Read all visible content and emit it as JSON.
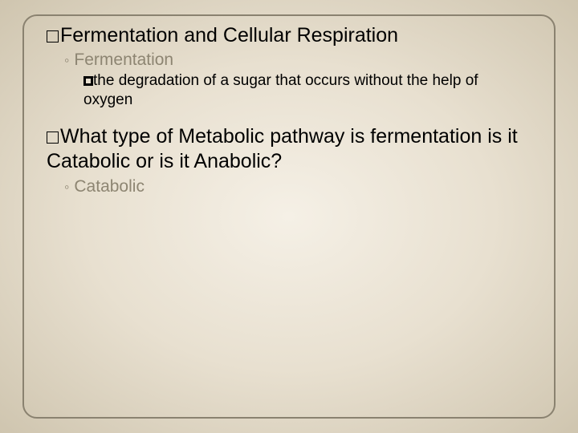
{
  "title_line": "Fermentation and Cellular Respiration",
  "sub_heading": "Fermentation",
  "definition": "the degradation of a sugar that occurs without the help of oxygen",
  "question": "What type of Metabolic pathway is fermentation is it Catabolic or is it Anabolic?",
  "answer": "Catabolic",
  "colors": {
    "frame_border": "#8a8270",
    "muted_text": "#8d8572",
    "bg_inner": "#f5f0e6",
    "bg_outer": "#cfc5af"
  }
}
